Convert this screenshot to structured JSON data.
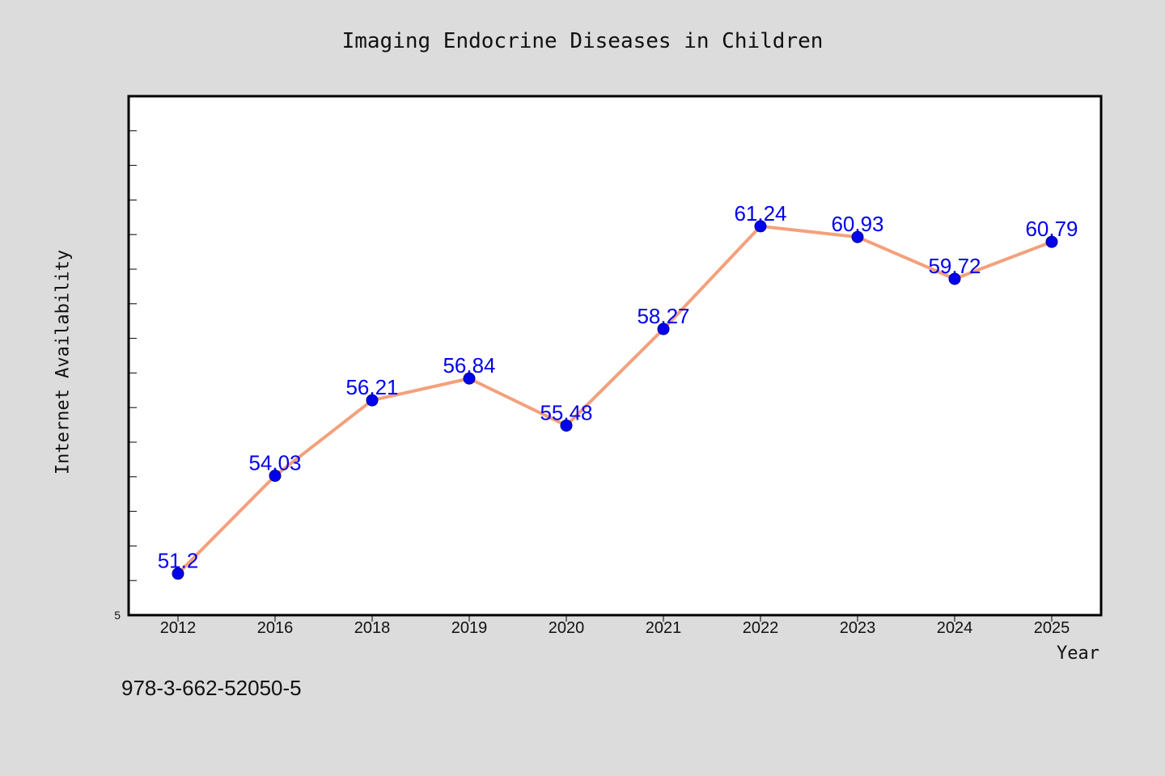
{
  "title": "Imaging Endocrine Diseases in Children",
  "footer": "978-3-662-52050-5",
  "chart_data": {
    "type": "line",
    "title": "Imaging Endocrine Diseases in Children",
    "xlabel": "Year",
    "ylabel": "Internet Availability",
    "categories": [
      "2012",
      "2016",
      "2018",
      "2019",
      "2020",
      "2021",
      "2022",
      "2023",
      "2024",
      "2025"
    ],
    "values": [
      51.2,
      54.03,
      56.21,
      56.84,
      55.48,
      58.27,
      61.24,
      60.93,
      59.72,
      60.79
    ],
    "data_labels": [
      "51.2",
      "54.03",
      "56.21",
      "56.84",
      "55.48",
      "58.27",
      "61.24",
      "60.93",
      "59.72",
      "60.79"
    ],
    "y_visible_tick_label": "5",
    "ylim": [
      50.0,
      65.0
    ],
    "grid": false,
    "colors": {
      "line": "#f4a07c",
      "marker": "#0000ee",
      "label": "#0000ee",
      "background": "#dcdcdc",
      "plot_bg": "#ffffff"
    }
  }
}
